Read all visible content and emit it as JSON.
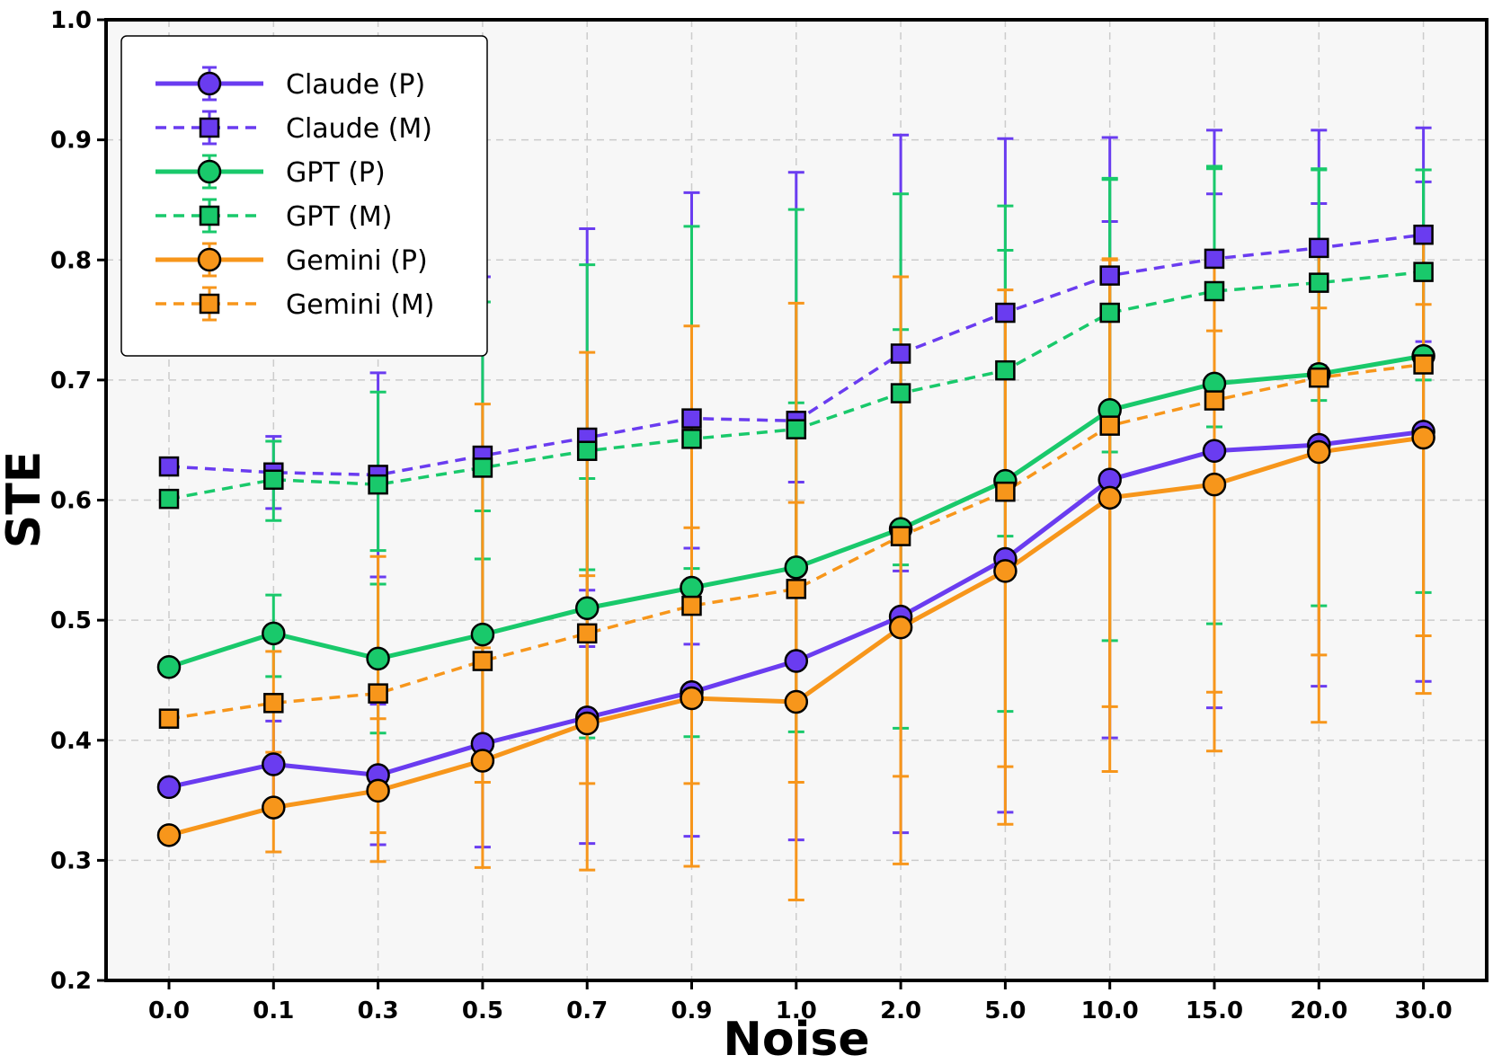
{
  "chart_data": {
    "type": "line",
    "title": "",
    "xlabel": "Noise",
    "ylabel": "STE",
    "categories": [
      "0.0",
      "0.1",
      "0.3",
      "0.5",
      "0.7",
      "0.9",
      "1.0",
      "2.0",
      "5.0",
      "10.0",
      "15.0",
      "20.0",
      "30.0"
    ],
    "ylim": [
      0.2,
      1.0
    ],
    "yticks": [
      0.2,
      0.3,
      0.4,
      0.5,
      0.6,
      0.7,
      0.8,
      0.9,
      1.0
    ],
    "grid": true,
    "legend_position": "top-left",
    "series": [
      {
        "name": "Claude (P)",
        "color": "#6a3cf0",
        "linestyle": "solid",
        "marker": "circle",
        "values": [
          0.361,
          0.38,
          0.371,
          0.397,
          0.419,
          0.44,
          0.466,
          0.503,
          0.551,
          0.617,
          0.641,
          0.646,
          0.657
        ],
        "err_low": [
          null,
          0.345,
          0.313,
          0.311,
          0.314,
          0.32,
          0.317,
          0.323,
          0.34,
          0.402,
          0.427,
          0.445,
          0.449
        ],
        "err_high": [
          null,
          0.416,
          0.43,
          0.483,
          0.525,
          0.56,
          0.615,
          0.683,
          0.762,
          0.832,
          0.855,
          0.847,
          0.865
        ]
      },
      {
        "name": "Claude (M)",
        "color": "#6a3cf0",
        "linestyle": "dashed",
        "marker": "square",
        "values": [
          0.628,
          0.623,
          0.621,
          0.637,
          0.652,
          0.668,
          0.666,
          0.722,
          0.756,
          0.787,
          0.801,
          0.81,
          0.821
        ],
        "err_low": [
          null,
          0.593,
          0.536,
          0.489,
          0.478,
          0.48,
          0.46,
          0.541,
          0.611,
          0.672,
          0.694,
          0.712,
          0.732
        ],
        "err_high": [
          null,
          0.653,
          0.706,
          0.786,
          0.826,
          0.856,
          0.873,
          0.904,
          0.901,
          0.902,
          0.908,
          0.908,
          0.91
        ]
      },
      {
        "name": "GPT (P)",
        "color": "#19c96b",
        "linestyle": "solid",
        "marker": "circle",
        "values": [
          0.461,
          0.489,
          0.468,
          0.488,
          0.51,
          0.527,
          0.544,
          0.576,
          0.616,
          0.675,
          0.697,
          0.705,
          0.72
        ],
        "err_low": [
          null,
          0.453,
          0.406,
          0.385,
          0.402,
          0.403,
          0.407,
          0.41,
          0.424,
          0.483,
          0.497,
          0.512,
          0.523
        ],
        "err_high": [
          null,
          0.521,
          0.53,
          0.591,
          0.618,
          0.651,
          0.681,
          0.742,
          0.808,
          0.867,
          0.876,
          0.875,
          0.875
        ]
      },
      {
        "name": "GPT (M)",
        "color": "#19c96b",
        "linestyle": "dashed",
        "marker": "square",
        "values": [
          0.601,
          0.617,
          0.613,
          0.627,
          0.641,
          0.651,
          0.659,
          0.689,
          0.708,
          0.756,
          0.774,
          0.781,
          0.79
        ],
        "err_low": [
          null,
          0.583,
          0.558,
          0.551,
          0.542,
          0.543,
          0.546,
          0.546,
          0.57,
          0.64,
          0.661,
          0.683,
          0.7
        ],
        "err_high": [
          null,
          0.649,
          0.69,
          0.765,
          0.796,
          0.828,
          0.842,
          0.855,
          0.845,
          0.868,
          0.878,
          0.876,
          0.875
        ]
      },
      {
        "name": "Gemini (P)",
        "color": "#f7961b",
        "linestyle": "solid",
        "marker": "circle",
        "values": [
          0.321,
          0.344,
          0.358,
          0.383,
          0.414,
          0.435,
          0.432,
          0.494,
          0.541,
          0.602,
          0.613,
          0.64,
          0.652
        ],
        "err_low": [
          null,
          0.307,
          0.299,
          0.294,
          0.292,
          0.295,
          0.267,
          0.297,
          0.33,
          0.374,
          0.391,
          0.415,
          0.439
        ],
        "err_high": [
          null,
          0.382,
          0.418,
          0.477,
          0.537,
          0.577,
          0.598,
          0.692,
          0.753,
          0.8,
          0.807,
          0.815,
          0.822
        ]
      },
      {
        "name": "Gemini (M)",
        "color": "#f7961b",
        "linestyle": "dashed",
        "marker": "square",
        "values": [
          0.418,
          0.431,
          0.439,
          0.466,
          0.489,
          0.512,
          0.526,
          0.57,
          0.607,
          0.662,
          0.683,
          0.702,
          0.713
        ],
        "err_low": [
          null,
          0.39,
          0.323,
          0.365,
          0.364,
          0.364,
          0.365,
          0.37,
          0.378,
          0.428,
          0.44,
          0.471,
          0.487
        ],
        "err_high": [
          null,
          0.474,
          0.553,
          0.68,
          0.723,
          0.745,
          0.764,
          0.786,
          0.775,
          0.801,
          0.741,
          0.76,
          0.763
        ]
      }
    ]
  }
}
